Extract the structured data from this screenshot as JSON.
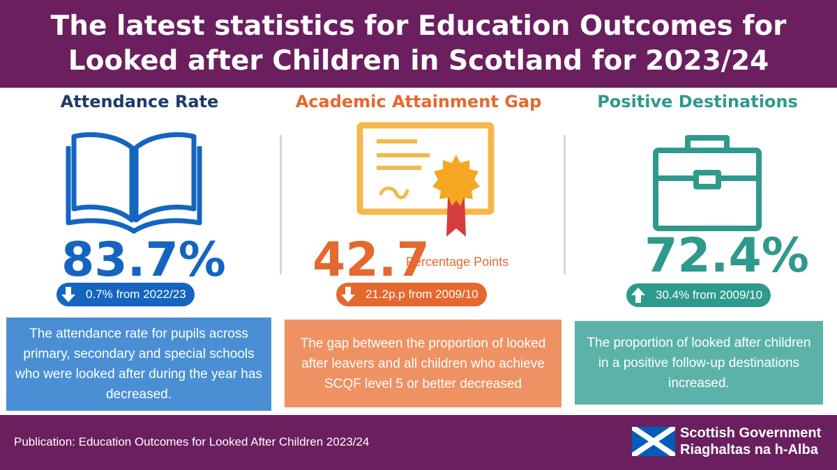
{
  "header": {
    "title": "The latest statistics for Education Outcomes for Looked after Children in Scotland for 2023/24"
  },
  "colors": {
    "header_bg": "#6b1f5f",
    "blue": "#1565c0",
    "navy": "#1d3a6b",
    "orange": "#e5682f",
    "teal": "#2e9a8d",
    "gold": "#f5b84a"
  },
  "attendance": {
    "title": "Attendance Rate",
    "icon": "open-book-icon",
    "value": "83.7%",
    "change_direction": "down",
    "change": "0.7% from 2022/23",
    "description": "The attendance rate for pupils across primary, secondary and special schools who were looked after during the year has decreased."
  },
  "attainment": {
    "title": "Academic Attainment Gap",
    "icon": "certificate-icon",
    "value": "42.7",
    "unit": "Percentage Points",
    "change_direction": "down",
    "change": "21.2p.p from 2009/10",
    "description": "The gap between the proportion of looked after leavers and all children who achieve SCQF level 5 or better decreased"
  },
  "destinations": {
    "title": "Positive Destinations",
    "icon": "briefcase-icon",
    "value": "72.4%",
    "change_direction": "up",
    "change": "30.4% from 2009/10",
    "description": "The proportion of looked after children  in a positive follow-up destinations increased."
  },
  "footer": {
    "publication": "Publication: Education Outcomes for Looked After Children 2023/24",
    "logo_line1": "Scottish Government",
    "logo_line2": "Riaghaltas na h-Alba"
  }
}
